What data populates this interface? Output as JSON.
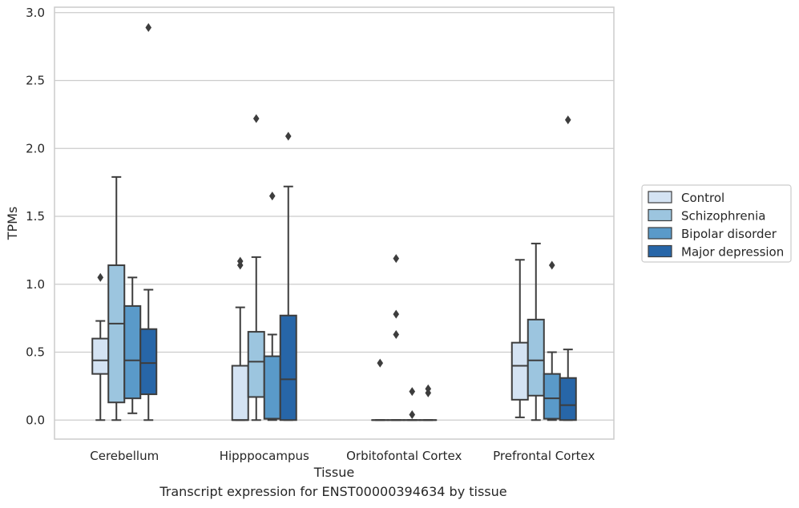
{
  "caption": "Transcript expression for ENST00000394634 by tissue",
  "chart_data": {
    "type": "box",
    "title": "",
    "xlabel": "Tissue",
    "ylabel": "TPMs",
    "ylim": [
      -0.14,
      3.04
    ],
    "yticks": [
      0.0,
      0.5,
      1.0,
      1.5,
      2.0,
      2.5,
      3.0
    ],
    "ytick_labels": [
      "0.0",
      "0.5",
      "1.0",
      "1.5",
      "2.0",
      "2.5",
      "3.0"
    ],
    "grid": "horizontal",
    "legend_position": "right",
    "categories": [
      "Cerebellum",
      "Hipppocampus",
      "Orbitofontal Cortex",
      "Prefrontal Cortex"
    ],
    "series": [
      {
        "name": "Control",
        "color": "#d4e3f3",
        "boxes": [
          {
            "whislo": 0.0,
            "q1": 0.34,
            "med": 0.44,
            "q3": 0.6,
            "whishi": 0.73,
            "fliers": [
              1.05
            ]
          },
          {
            "whislo": 0.0,
            "q1": 0.0,
            "med": 0.0,
            "q3": 0.4,
            "whishi": 0.83,
            "fliers": [
              1.14,
              1.17
            ]
          },
          {
            "whislo": 0.0,
            "q1": 0.0,
            "med": 0.0,
            "q3": 0.0,
            "whishi": 0.0,
            "fliers": [
              0.42
            ]
          },
          {
            "whislo": 0.02,
            "q1": 0.15,
            "med": 0.4,
            "q3": 0.57,
            "whishi": 1.18,
            "fliers": []
          }
        ]
      },
      {
        "name": "Schizophrenia",
        "color": "#9cc5df",
        "boxes": [
          {
            "whislo": 0.0,
            "q1": 0.13,
            "med": 0.71,
            "q3": 1.14,
            "whishi": 1.79,
            "fliers": []
          },
          {
            "whislo": 0.0,
            "q1": 0.17,
            "med": 0.43,
            "q3": 0.65,
            "whishi": 1.2,
            "fliers": [
              2.22
            ]
          },
          {
            "whislo": 0.0,
            "q1": 0.0,
            "med": 0.0,
            "q3": 0.0,
            "whishi": 0.0,
            "fliers": [
              0.63,
              0.78,
              1.19
            ]
          },
          {
            "whislo": 0.0,
            "q1": 0.18,
            "med": 0.44,
            "q3": 0.74,
            "whishi": 1.3,
            "fliers": []
          }
        ]
      },
      {
        "name": "Bipolar disorder",
        "color": "#5a9ac9",
        "boxes": [
          {
            "whislo": 0.05,
            "q1": 0.16,
            "med": 0.44,
            "q3": 0.84,
            "whishi": 1.05,
            "fliers": []
          },
          {
            "whislo": 0.0,
            "q1": 0.01,
            "med": 0.01,
            "q3": 0.47,
            "whishi": 0.63,
            "fliers": [
              1.65
            ]
          },
          {
            "whislo": 0.0,
            "q1": 0.0,
            "med": 0.0,
            "q3": 0.0,
            "whishi": 0.0,
            "fliers": [
              0.04,
              0.21
            ]
          },
          {
            "whislo": 0.0,
            "q1": 0.01,
            "med": 0.16,
            "q3": 0.34,
            "whishi": 0.5,
            "fliers": [
              1.14
            ]
          }
        ]
      },
      {
        "name": "Major depression",
        "color": "#2766a8",
        "boxes": [
          {
            "whislo": 0.0,
            "q1": 0.19,
            "med": 0.42,
            "q3": 0.67,
            "whishi": 0.96,
            "fliers": [
              2.89
            ]
          },
          {
            "whislo": 0.0,
            "q1": 0.0,
            "med": 0.3,
            "q3": 0.77,
            "whishi": 1.72,
            "fliers": [
              2.09
            ]
          },
          {
            "whislo": 0.0,
            "q1": 0.0,
            "med": 0.0,
            "q3": 0.0,
            "whishi": 0.0,
            "fliers": [
              0.2,
              0.23
            ]
          },
          {
            "whislo": 0.0,
            "q1": 0.0,
            "med": 0.11,
            "q3": 0.31,
            "whishi": 0.52,
            "fliers": [
              2.21
            ]
          }
        ]
      }
    ]
  }
}
